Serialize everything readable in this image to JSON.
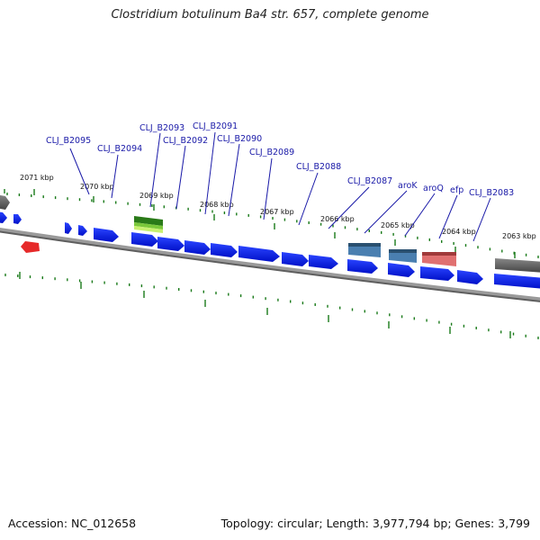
{
  "title": "Clostridium botulinum Ba4 str. 657, complete genome",
  "footer": {
    "accession": "Accession: NC_012658",
    "summary": "Topology: circular; Length: 3,977,794 bp; Genes: 3,799"
  },
  "colors": {
    "cds": "#0a1ee6",
    "backbone": "#777777",
    "tick": "#1a7a1a",
    "label": "#1a1aa8",
    "rrna": "#e62a2a",
    "trna_green": "#3a9a20",
    "aro": "#4a7fb0",
    "efp": "#e07070",
    "other": "#606060"
  },
  "kbp_labels": [
    "2071 kbp",
    "2070 kbp",
    "2069 kbp",
    "2068 kbp",
    "2067 kbp",
    "2066 kbp",
    "2065 kbp",
    "2064 kbp",
    "2063 kbp"
  ],
  "gene_labels": [
    "CLJ_B2095",
    "CLJ_B2094",
    "CLJ_B2093",
    "CLJ_B2092",
    "CLJ_B2091",
    "CLJ_B2090",
    "CLJ_B2089",
    "CLJ_B2088",
    "CLJ_B2087",
    "aroK",
    "aroQ",
    "efp",
    "CLJ_B2083"
  ]
}
